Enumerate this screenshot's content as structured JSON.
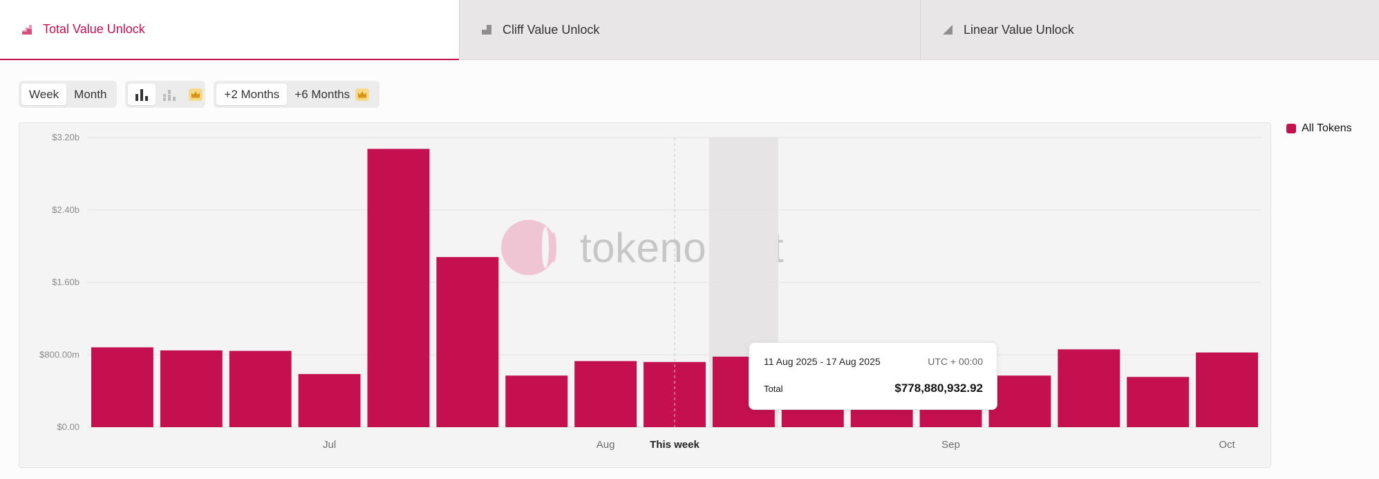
{
  "tabs": [
    {
      "label": "Total Value Unlock",
      "icon": "pie-steps-icon"
    },
    {
      "label": "Cliff Value Unlock",
      "icon": "cliff-step-icon"
    },
    {
      "label": "Linear Value Unlock",
      "icon": "linear-ramp-icon"
    }
  ],
  "controls": {
    "period": [
      "Week",
      "Month"
    ],
    "period_active": "Week",
    "chart_modes": [
      "bar-chart-icon",
      "stacked-bar-icon"
    ],
    "ranges": [
      "+2 Months",
      "+6 Months"
    ],
    "range_active": "+2 Months",
    "premium_icon": "crown-icon"
  },
  "watermark": {
    "text": "tokenomist"
  },
  "legend": {
    "label": "All Tokens",
    "color": "#c4104f"
  },
  "tooltip": {
    "range": "11 Aug 2025 - 17 Aug 2025",
    "timezone": "UTC + 00:00",
    "label": "Total",
    "value": "$778,880,932.92"
  },
  "chart_data": {
    "type": "bar",
    "series": [
      {
        "name": "All Tokens",
        "color": "#c4104f",
        "values": [
          0.882,
          0.848,
          0.843,
          0.587,
          3.075,
          1.88,
          0.57,
          0.73,
          0.72,
          0.779,
          0.7,
          0.69,
          0.56,
          0.57,
          0.86,
          0.555,
          0.825
        ]
      }
    ],
    "unit": "billion USD",
    "ylim": [
      0,
      3.2
    ],
    "yticks": [
      {
        "value": 0,
        "label": "$0.00"
      },
      {
        "value": 0.8,
        "label": "$800.00m"
      },
      {
        "value": 1.6,
        "label": "$1.60b"
      },
      {
        "value": 2.4,
        "label": "$2.40b"
      },
      {
        "value": 3.2,
        "label": "$3.20b"
      }
    ],
    "xticks": [
      {
        "at": 3.5,
        "label": "Jul"
      },
      {
        "at": 7.5,
        "label": "Aug"
      },
      {
        "at": 8.5,
        "label": "This week",
        "emphasis": true
      },
      {
        "at": 12.5,
        "label": "Sep"
      },
      {
        "at": 16.5,
        "label": "Oct"
      }
    ],
    "current_week_marker": 8.5,
    "highlighted_index": 9,
    "grid": true
  }
}
